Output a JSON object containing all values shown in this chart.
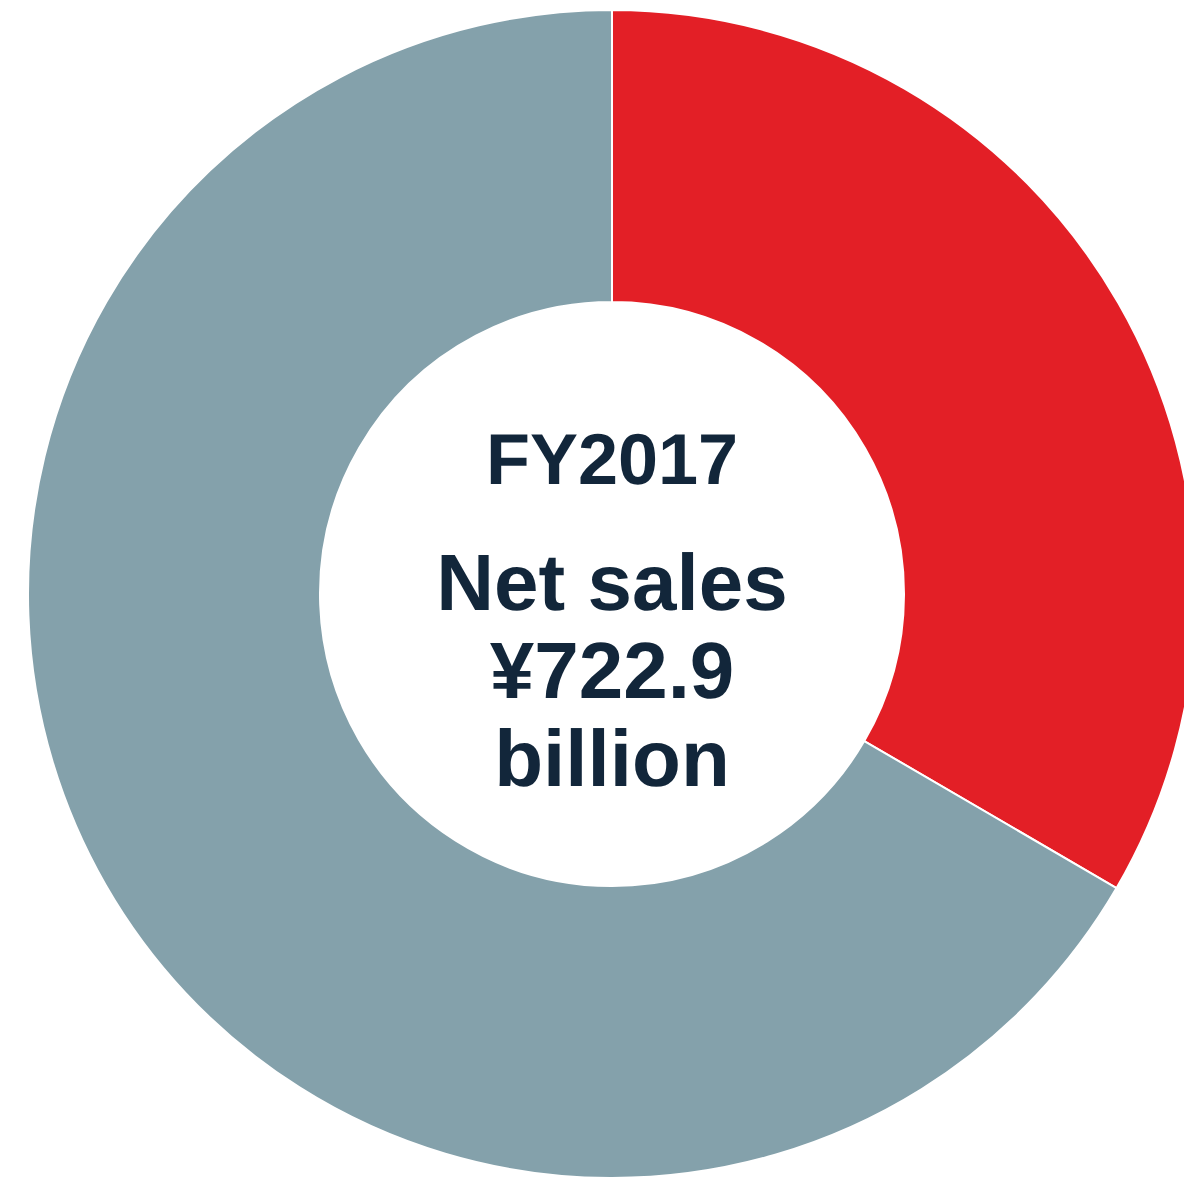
{
  "chart_data": {
    "type": "donut",
    "title": "FY2017",
    "annotations": [
      "Net sales",
      "¥722.9",
      "billion"
    ],
    "categories": [
      null,
      null
    ],
    "values": [
      33.4,
      66.6
    ],
    "colors": [
      "#e31f26",
      "#84a1ab"
    ],
    "legend": false
  }
}
